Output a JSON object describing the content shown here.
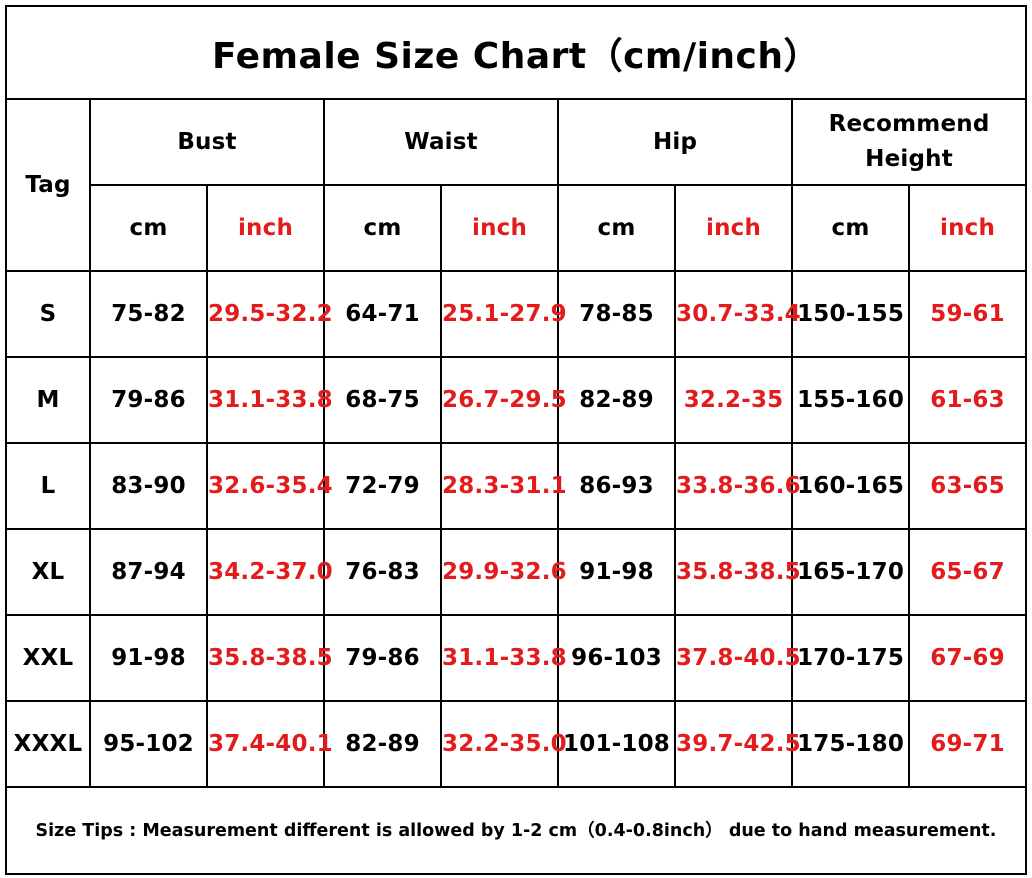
{
  "title": "Female Size Chart（cm/inch）",
  "headers": {
    "tag": "Tag",
    "bust": "Bust",
    "waist": "Waist",
    "hip": "Hip",
    "height_line1": "Recommend",
    "height_line2": "Height",
    "cm": "cm",
    "inch": "inch"
  },
  "rows": [
    {
      "tag": "S",
      "bust_cm": "75-82",
      "bust_in": "29.5-32.2",
      "waist_cm": "64-71",
      "waist_in": "25.1-27.9",
      "hip_cm": "78-85",
      "hip_in": "30.7-33.4",
      "height_cm": "150-155",
      "height_in": "59-61"
    },
    {
      "tag": "M",
      "bust_cm": "79-86",
      "bust_in": "31.1-33.8",
      "waist_cm": "68-75",
      "waist_in": "26.7-29.5",
      "hip_cm": "82-89",
      "hip_in": "32.2-35",
      "height_cm": "155-160",
      "height_in": "61-63"
    },
    {
      "tag": "L",
      "bust_cm": "83-90",
      "bust_in": "32.6-35.4",
      "waist_cm": "72-79",
      "waist_in": "28.3-31.1",
      "hip_cm": "86-93",
      "hip_in": "33.8-36.6",
      "height_cm": "160-165",
      "height_in": "63-65"
    },
    {
      "tag": "XL",
      "bust_cm": "87-94",
      "bust_in": "34.2-37.0",
      "waist_cm": "76-83",
      "waist_in": "29.9-32.6",
      "hip_cm": "91-98",
      "hip_in": "35.8-38.5",
      "height_cm": "165-170",
      "height_in": "65-67"
    },
    {
      "tag": "XXL",
      "bust_cm": "91-98",
      "bust_in": "35.8-38.5",
      "waist_cm": "79-86",
      "waist_in": "31.1-33.8",
      "hip_cm": "96-103",
      "hip_in": "37.8-40.5",
      "height_cm": "170-175",
      "height_in": "67-69"
    },
    {
      "tag": "XXXL",
      "bust_cm": "95-102",
      "bust_in": "37.4-40.1",
      "waist_cm": "82-89",
      "waist_in": "32.2-35.0",
      "hip_cm": "101-108",
      "hip_in": "39.7-42.5",
      "height_cm": "175-180",
      "height_in": "69-71"
    }
  ],
  "tips": "Size Tips : Measurement different is allowed by 1-2 cm（0.4-0.8inch） due to hand measurement.",
  "colors": {
    "text": "#000000",
    "inch_accent": "#e21c1c",
    "border": "#000000",
    "background": "#ffffff"
  }
}
